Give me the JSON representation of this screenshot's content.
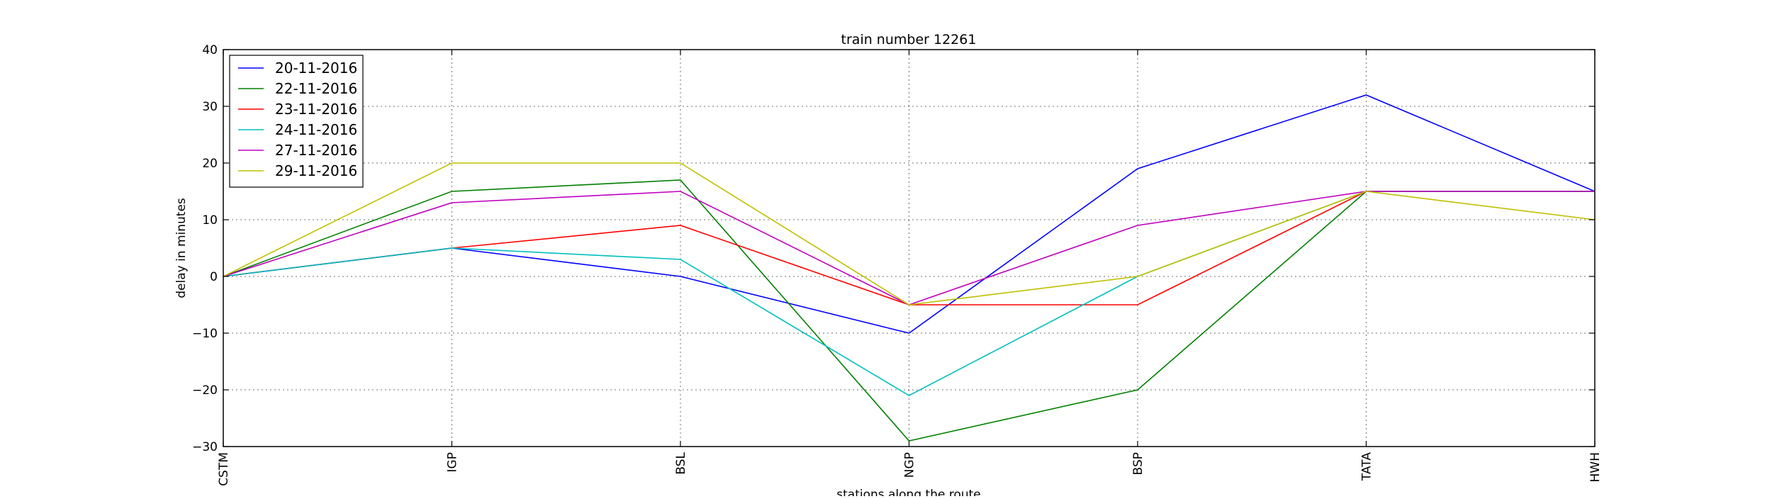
{
  "chart_data": {
    "type": "line",
    "title": "train number 12261",
    "xlabel": "stations along the route",
    "ylabel": "delay in minutes",
    "categories": [
      "CSTM",
      "IGP",
      "BSL",
      "NGP",
      "BSP",
      "TATA",
      "HWH"
    ],
    "ylim": [
      -30,
      40
    ],
    "yticks": [
      -30,
      -20,
      -10,
      0,
      10,
      20,
      30,
      40
    ],
    "ytick_labels": [
      "−30",
      "−20",
      "−10",
      "0",
      "10",
      "20",
      "30",
      "40"
    ],
    "grid": true,
    "legend_position": "top-left",
    "series": [
      {
        "name": "20-11-2016",
        "color": "#0000ff",
        "values": [
          0,
          5,
          0,
          -10,
          19,
          32,
          15
        ]
      },
      {
        "name": "22-11-2016",
        "color": "#008000",
        "values": [
          0,
          15,
          17,
          -29,
          -20,
          15,
          15
        ]
      },
      {
        "name": "23-11-2016",
        "color": "#ff0000",
        "values": [
          0,
          5,
          9,
          -5,
          -5,
          15,
          15
        ]
      },
      {
        "name": "24-11-2016",
        "color": "#00bfbf",
        "values": [
          0,
          5,
          3,
          -21,
          0,
          15,
          15
        ]
      },
      {
        "name": "27-11-2016",
        "color": "#bf00bf",
        "values": [
          0,
          13,
          15,
          -5,
          9,
          15,
          15
        ]
      },
      {
        "name": "29-11-2016",
        "color": "#bfbf00",
        "values": [
          0,
          20,
          20,
          -5,
          0,
          15,
          10
        ]
      }
    ]
  }
}
